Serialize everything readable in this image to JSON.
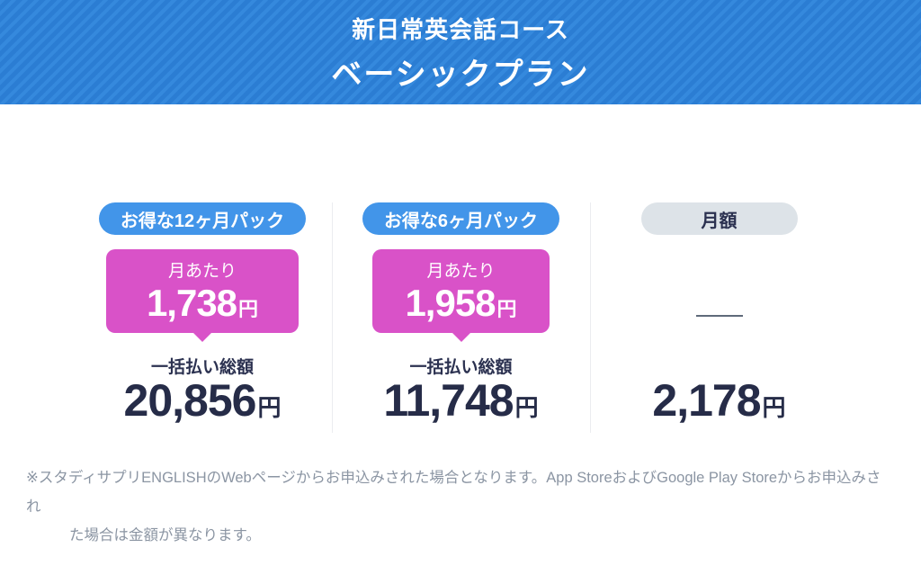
{
  "banner": {
    "course_name": "新日常英会話コース",
    "plan_name": "ベーシックプラン"
  },
  "pricing": {
    "columns": [
      {
        "badge": "お得な12ヶ月パック",
        "per_month_label": "月あたり",
        "per_month_price": "1,738",
        "currency": "円",
        "total_label": "一括払い総額",
        "total_price": "20,856"
      },
      {
        "badge": "お得な6ヶ月パック",
        "per_month_label": "月あたり",
        "per_month_price": "1,958",
        "currency": "円",
        "total_label": "一括払い総額",
        "total_price": "11,748"
      },
      {
        "badge": "月額",
        "currency": "円",
        "total_price": "2,178"
      }
    ]
  },
  "note": {
    "line1": "※スタディサプリENGLISHのWebページからお申込みされた場合となります。App StoreおよびGoogle Play Storeからお申込みされ",
    "line2": "た場合は金額が異なります。"
  },
  "colors": {
    "banner_blue": "#2f81d7",
    "badge_blue": "#4295e9",
    "bubble_pink": "#d952c8",
    "navy_text": "#262c48",
    "badge_gray": "#dde3e8",
    "note_gray": "#8b95a3"
  }
}
